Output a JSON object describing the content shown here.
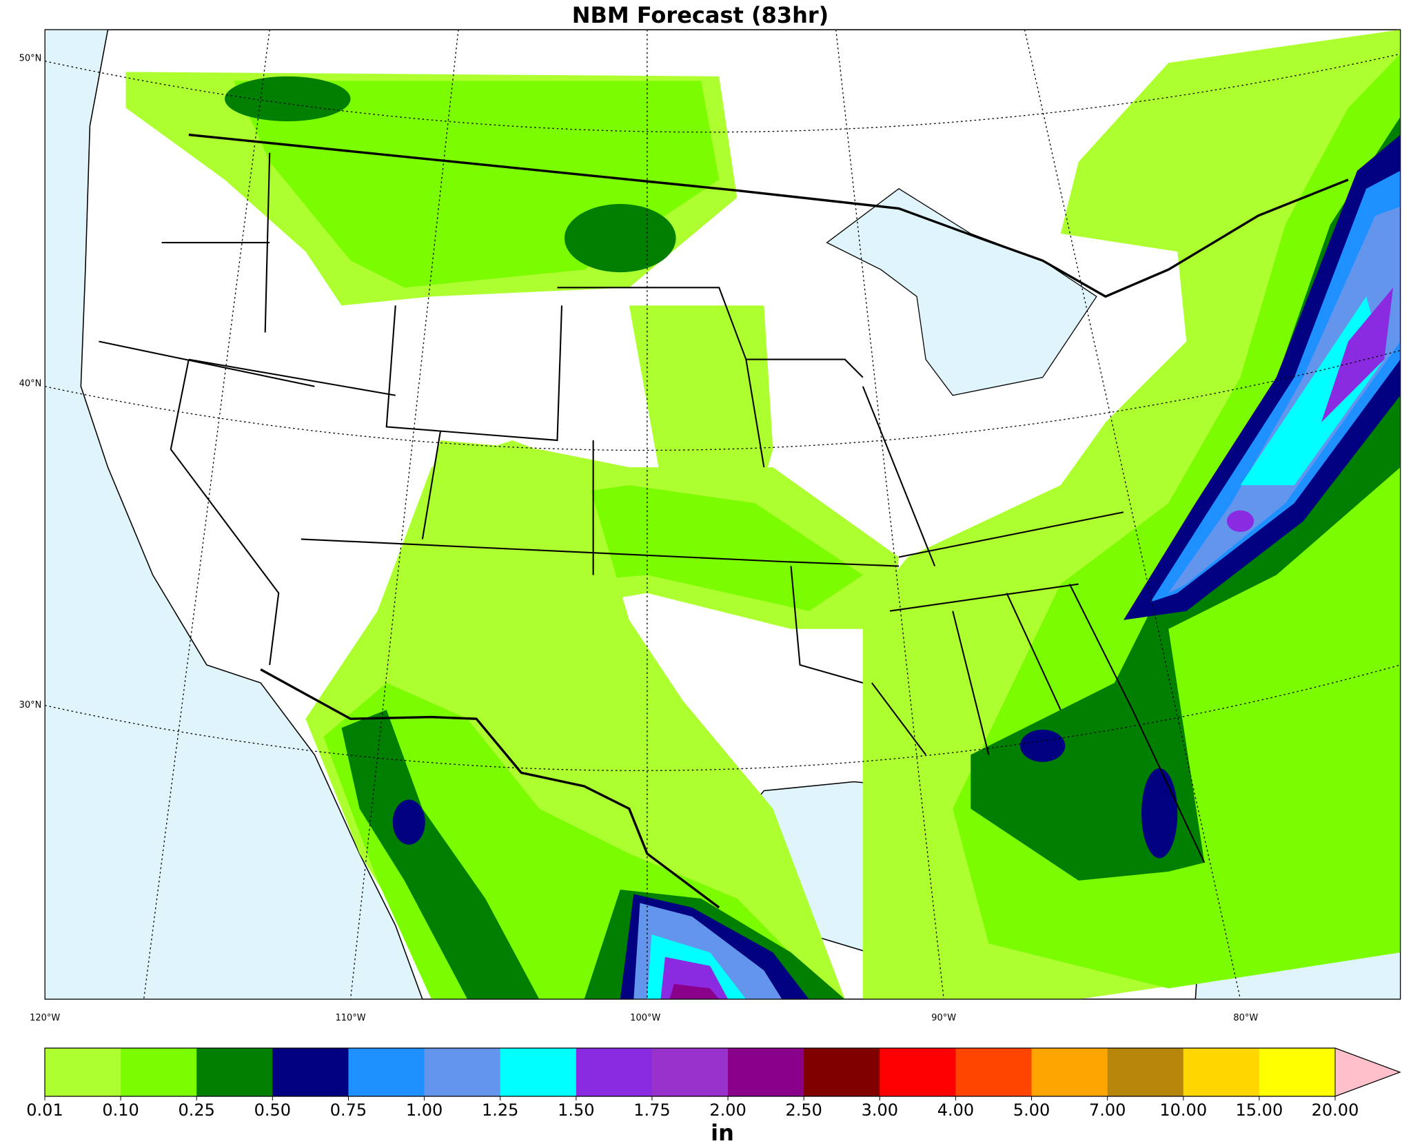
{
  "title": "NBM Forecast (83hr)",
  "lat_labels": [
    "50°N",
    "40°N",
    "30°N"
  ],
  "lon_labels": [
    "120°W",
    "110°W",
    "100°W",
    "90°W",
    "80°W"
  ],
  "colorbar": {
    "levels": [
      "0.01",
      "0.10",
      "0.25",
      "0.50",
      "0.75",
      "1.00",
      "1.25",
      "1.50",
      "1.75",
      "2.00",
      "2.50",
      "3.00",
      "4.00",
      "5.00",
      "7.00",
      "10.00",
      "15.00",
      "20.00"
    ],
    "colors": [
      "#adff2f",
      "#7cfc00",
      "#007f00",
      "#000080",
      "#1e90ff",
      "#6495ed",
      "#00ffff",
      "#8a2be2",
      "#9932cc",
      "#8b008b",
      "#800000",
      "#ff0000",
      "#ff4500",
      "#ffa500",
      "#b8860b",
      "#ffd700",
      "#ffff00"
    ],
    "extend_color": "#ffc0cb",
    "unit": "in"
  }
}
